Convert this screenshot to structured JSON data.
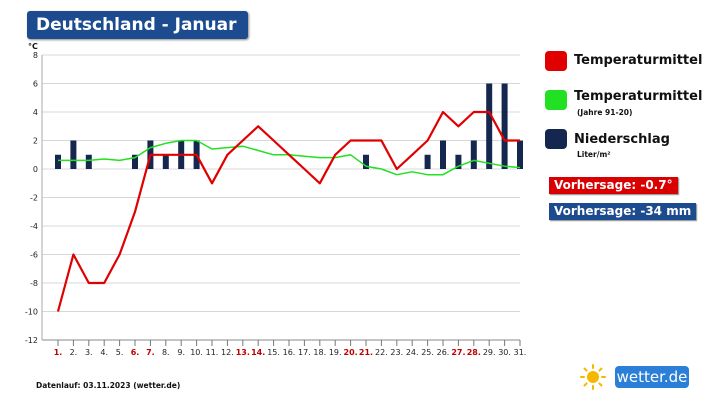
{
  "title": "Deutschland - Januar",
  "legend": {
    "temp": "Temperaturmittel",
    "temp_normal": "Temperaturmittel",
    "temp_normal_sub": "(Jahre 91-20)",
    "precip": "Niederschlag",
    "precip_unit": "Liter/m²"
  },
  "forecast_temp": "Vorhersage: -0.7°",
  "forecast_precip": "Vorhersage: -34 mm",
  "footer": "Datenlauf: 03.11.2023 (wetter.de)",
  "logo": "wetter.de",
  "colors": {
    "title_bg": "#1d4b8f",
    "temp": "#e00000",
    "temp_normal": "#22e022",
    "precip": "#15274f",
    "forecast_temp_bg": "#d80000",
    "forecast_precip_bg": "#1d4b8f",
    "weekend_label": "#c00000",
    "logo_bg": "#2b7fd6"
  },
  "chart_data": {
    "type": "line",
    "ylabel": "°C",
    "ylim": [
      -12,
      8
    ],
    "yticks": [
      -12,
      -10,
      -8,
      -6,
      -4,
      -2,
      0,
      2,
      4,
      6,
      8
    ],
    "categories": [
      "1.",
      "2.",
      "3.",
      "4.",
      "5.",
      "6.",
      "7.",
      "8.",
      "9.",
      "10.",
      "11.",
      "12.",
      "13.",
      "14.",
      "15.",
      "16.",
      "17.",
      "18.",
      "19.",
      "20.",
      "21.",
      "22.",
      "23.",
      "24.",
      "25.",
      "26.",
      "27.",
      "28.",
      "29.",
      "30.",
      "31."
    ],
    "weekend": [
      "1.",
      "6.",
      "7.",
      "13.",
      "14.",
      "20.",
      "21.",
      "27.",
      "28."
    ],
    "grid": true,
    "series": [
      {
        "name": "Temperaturmittel",
        "kind": "line",
        "values": [
          -10,
          -6,
          -8,
          -8,
          -6,
          -3,
          1,
          1,
          1,
          1,
          -1,
          1,
          2,
          3,
          2,
          1,
          0,
          -1,
          1,
          2,
          2,
          2,
          0,
          1,
          2,
          4,
          3,
          4,
          4,
          2,
          2
        ]
      },
      {
        "name": "Temperaturmittel (Jahre 91-20)",
        "kind": "line",
        "values": [
          0.6,
          0.6,
          0.6,
          0.7,
          0.6,
          0.8,
          1.5,
          1.8,
          2.0,
          2.0,
          1.4,
          1.5,
          1.6,
          1.3,
          1.0,
          1.0,
          0.9,
          0.8,
          0.8,
          1.0,
          0.2,
          0.0,
          -0.4,
          -0.2,
          -0.4,
          -0.4,
          0.2,
          0.6,
          0.4,
          0.2,
          0.1
        ]
      },
      {
        "name": "Niederschlag",
        "kind": "bar",
        "values": [
          1,
          2,
          1,
          0,
          0,
          1,
          2,
          1,
          2,
          2,
          0,
          0,
          0,
          0,
          0,
          0,
          0,
          0,
          0,
          0,
          1,
          0,
          0,
          0,
          1,
          2,
          1,
          2,
          6,
          6,
          2
        ]
      }
    ]
  }
}
